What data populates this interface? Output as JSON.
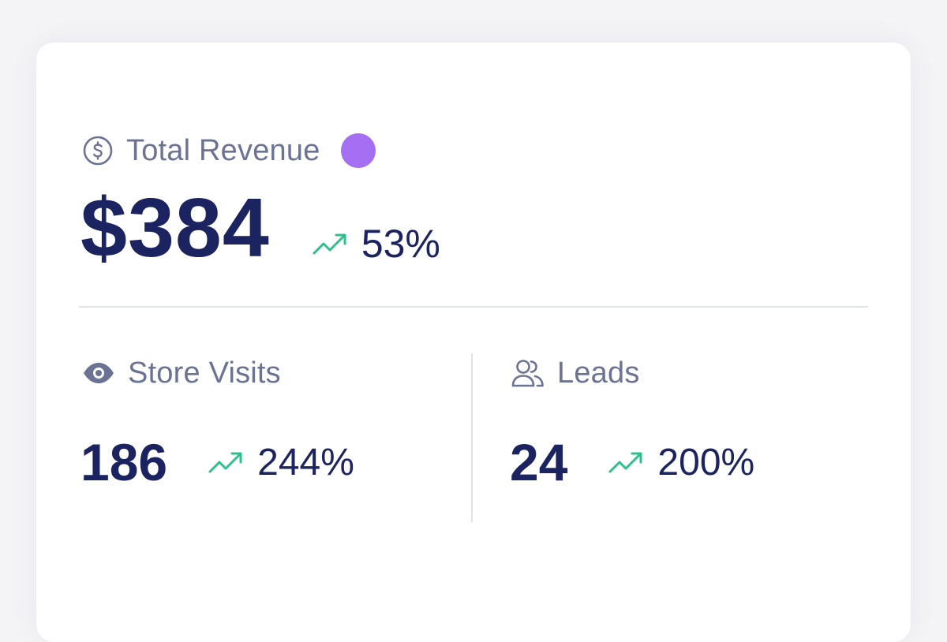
{
  "revenue": {
    "title": "Total Revenue",
    "icon": "dollar-circle-icon",
    "indicator_color": "#a56ff3",
    "value": "$384",
    "trend": {
      "icon": "trending-up-icon",
      "value": "53%",
      "direction": "up",
      "color": "#2cc08a"
    }
  },
  "store_visits": {
    "title": "Store Visits",
    "icon": "eye-icon",
    "value": "186",
    "trend": {
      "icon": "trending-up-icon",
      "value": "244%",
      "direction": "up"
    }
  },
  "leads": {
    "title": "Leads",
    "icon": "users-icon",
    "value": "24",
    "trend": {
      "icon": "trending-up-icon",
      "value": "200%",
      "direction": "up"
    }
  },
  "colors": {
    "primary_text": "#1b2461",
    "secondary_text": "#6b7394",
    "trend_up": "#2cc08a",
    "divider": "#dfe3e8"
  }
}
